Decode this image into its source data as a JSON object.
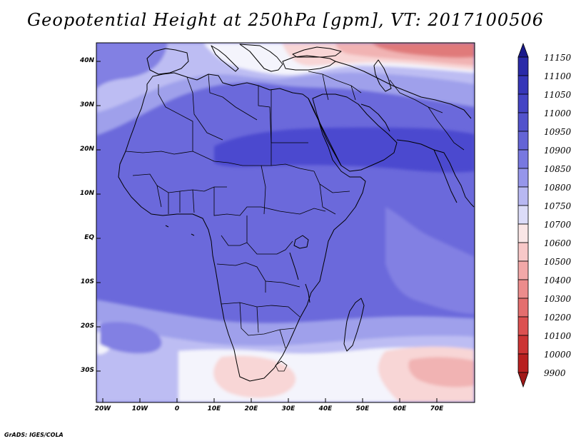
{
  "title": "Geopotential Height at 250hPa [gpm], VT: 2017100506",
  "footer": "GrADS: IGES/COLA",
  "axes": {
    "lat_labels": [
      "40N",
      "30N",
      "20N",
      "10N",
      "EQ",
      "10S",
      "20S",
      "30S"
    ],
    "lon_labels": [
      "20W",
      "10W",
      "0",
      "10E",
      "20E",
      "30E",
      "40E",
      "50E",
      "60E",
      "70E"
    ]
  },
  "colorbar": {
    "labels": [
      "11150",
      "11100",
      "11050",
      "11000",
      "10950",
      "10900",
      "10850",
      "10800",
      "10750",
      "10700",
      "10600",
      "10500",
      "10400",
      "10300",
      "10200",
      "10100",
      "10000",
      "9900"
    ],
    "colors": [
      "#1a1a8c",
      "#2a2aa8",
      "#3636b8",
      "#4444c4",
      "#5252cc",
      "#6464d6",
      "#7878e0",
      "#9696ea",
      "#b8b8f2",
      "#dcdcf8",
      "#fae6e6",
      "#f8c8c8",
      "#f2a8a8",
      "#ec8c8c",
      "#e46e6e",
      "#dc5050",
      "#cc3434",
      "#b82020",
      "#a01818"
    ]
  },
  "map": {
    "projection": "lat-lon",
    "lon_range": [
      -25,
      80
    ],
    "lat_range": [
      -37,
      45
    ],
    "field_colors": {
      "deep": "#4b48cf",
      "base": "#6b69db",
      "mid": "#8280e3",
      "light": "#9fa0eb",
      "pale": "#bdbdf3",
      "white": "#f4f4fc",
      "pink": "#f8d6d6",
      "rose": "#f1b3b3",
      "red": "#e88f8f",
      "dark_red": "#e07a7a"
    }
  }
}
